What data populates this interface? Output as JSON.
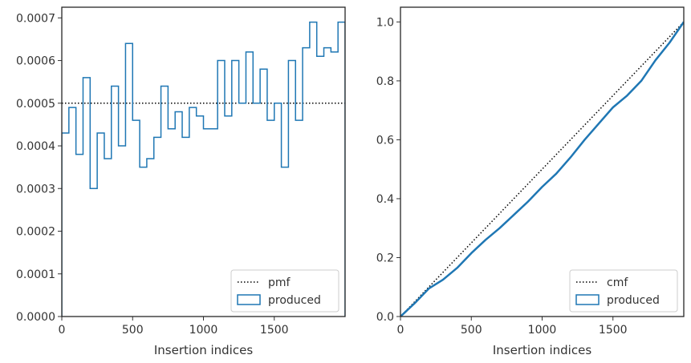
{
  "chart_data": [
    {
      "type": "step",
      "xlabel": "Insertion indices",
      "ylabel": "",
      "xlim": [
        0,
        2000
      ],
      "ylim": [
        0,
        0.000725
      ],
      "xticks": [
        0,
        500,
        1000,
        1500
      ],
      "xtick_labels": [
        "0",
        "500",
        "1000",
        "1500"
      ],
      "yticks": [
        0,
        0.0001,
        0.0002,
        0.0003,
        0.0004,
        0.0005,
        0.0006,
        0.0007
      ],
      "ytick_labels": [
        "0.0000",
        "0.0001",
        "0.0002",
        "0.0003",
        "0.0004",
        "0.0005",
        "0.0006",
        "0.0007"
      ],
      "bin_width": 50,
      "reference": {
        "name": "pmf",
        "value": 0.0005,
        "style": "dotted",
        "color": "#000000"
      },
      "series": [
        {
          "name": "produced",
          "color": "#1f77b4",
          "x_start": [
            0,
            50,
            100,
            150,
            200,
            250,
            300,
            350,
            400,
            450,
            500,
            550,
            600,
            650,
            700,
            750,
            800,
            850,
            900,
            950,
            1000,
            1050,
            1100,
            1150,
            1200,
            1250,
            1300,
            1350,
            1400,
            1450,
            1500,
            1550,
            1600,
            1650,
            1700,
            1750,
            1800,
            1850,
            1900,
            1950
          ],
          "values": [
            0.00043,
            0.00049,
            0.00038,
            0.00056,
            0.0003,
            0.00043,
            0.00037,
            0.00054,
            0.0004,
            0.00064,
            0.00046,
            0.00035,
            0.00037,
            0.00042,
            0.00054,
            0.00044,
            0.00048,
            0.00042,
            0.00049,
            0.00047,
            0.00044,
            0.00044,
            0.0006,
            0.00047,
            0.0006,
            0.0005,
            0.00062,
            0.0005,
            0.00058,
            0.00046,
            0.0005,
            0.00035,
            0.0006,
            0.00046,
            0.00063,
            0.00069,
            0.00061,
            0.00063,
            0.00062,
            0.00069
          ]
        }
      ],
      "legend": {
        "position": "lower-right",
        "entries": [
          "pmf",
          "produced"
        ]
      }
    },
    {
      "type": "line",
      "xlabel": "Insertion indices",
      "ylabel": "",
      "xlim": [
        0,
        2000
      ],
      "ylim": [
        0,
        1.05
      ],
      "xticks": [
        0,
        500,
        1000,
        1500
      ],
      "xtick_labels": [
        "0",
        "500",
        "1000",
        "1500"
      ],
      "yticks": [
        0,
        0.2,
        0.4,
        0.6,
        0.8,
        1.0
      ],
      "ytick_labels": [
        "0.0",
        "0.2",
        "0.4",
        "0.6",
        "0.8",
        "1.0"
      ],
      "reference": {
        "name": "cmf",
        "x": [
          0,
          2000
        ],
        "y": [
          0,
          1.0
        ],
        "style": "dotted",
        "color": "#000000"
      },
      "series": [
        {
          "name": "produced",
          "color": "#1f77b4",
          "x": [
            0,
            100,
            200,
            300,
            400,
            500,
            600,
            700,
            800,
            900,
            1000,
            1100,
            1200,
            1300,
            1400,
            1500,
            1600,
            1700,
            1800,
            1900,
            2000
          ],
          "y": [
            0,
            0.045,
            0.095,
            0.125,
            0.165,
            0.215,
            0.26,
            0.3,
            0.345,
            0.39,
            0.44,
            0.485,
            0.54,
            0.6,
            0.655,
            0.71,
            0.75,
            0.8,
            0.87,
            0.93,
            1.0
          ]
        }
      ],
      "legend": {
        "position": "lower-right",
        "entries": [
          "cmf",
          "produced"
        ]
      }
    }
  ]
}
